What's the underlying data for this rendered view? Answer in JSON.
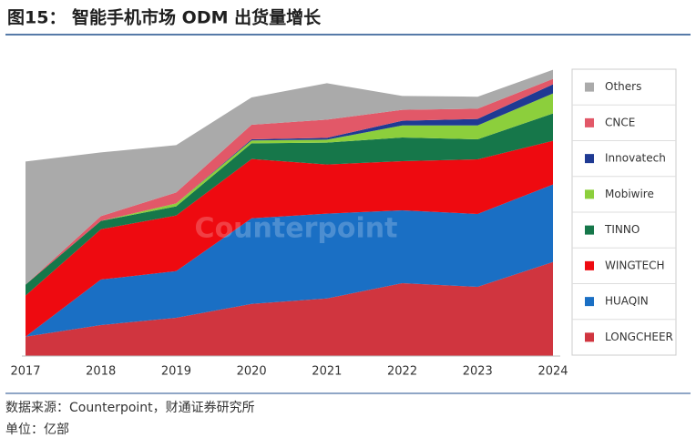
{
  "chart_data": {
    "type": "stacked-area",
    "title": "图15：  智能手机市场 ODM 出货量增长",
    "watermark": "Counterpoint",
    "source": "数据来源：Counterpoint，财通证券研究所",
    "unit": "单位：亿部",
    "categories": [
      "2017",
      "2018",
      "2019",
      "2020",
      "2021",
      "2022",
      "2023",
      "2024"
    ],
    "ylim": [
      0,
      8
    ],
    "series": [
      {
        "name": "LONGCHEER",
        "color": "#d0353f",
        "values": [
          0.53,
          0.85,
          1.05,
          1.43,
          1.58,
          2.0,
          1.9,
          2.58
        ]
      },
      {
        "name": "HUAQIN",
        "color": "#1a6fc4",
        "values": [
          0,
          1.25,
          1.28,
          2.35,
          2.33,
          2.0,
          2.0,
          2.13
        ]
      },
      {
        "name": "WINGTECH",
        "color": "#ee0a10",
        "values": [
          1.13,
          1.38,
          1.53,
          1.63,
          1.35,
          1.35,
          1.5,
          1.2
        ]
      },
      {
        "name": "TINNO",
        "color": "#16774a",
        "values": [
          0.3,
          0.23,
          0.25,
          0.43,
          0.6,
          0.65,
          0.55,
          0.75
        ]
      },
      {
        "name": "Mobiwire",
        "color": "#8ccf3c",
        "values": [
          0,
          0,
          0.08,
          0.08,
          0.08,
          0.33,
          0.38,
          0.55
        ]
      },
      {
        "name": "Innovatech",
        "color": "#1f3a93",
        "values": [
          0,
          0,
          0,
          0.03,
          0.05,
          0.13,
          0.18,
          0.25
        ]
      },
      {
        "name": "CNCE",
        "color": "#e25868",
        "values": [
          0,
          0.13,
          0.3,
          0.4,
          0.5,
          0.3,
          0.28,
          0.15
        ]
      },
      {
        "name": "Others",
        "color": "#aaaaaa",
        "values": [
          3.38,
          1.75,
          1.3,
          0.75,
          1.0,
          0.38,
          0.33,
          0.25
        ]
      }
    ]
  }
}
